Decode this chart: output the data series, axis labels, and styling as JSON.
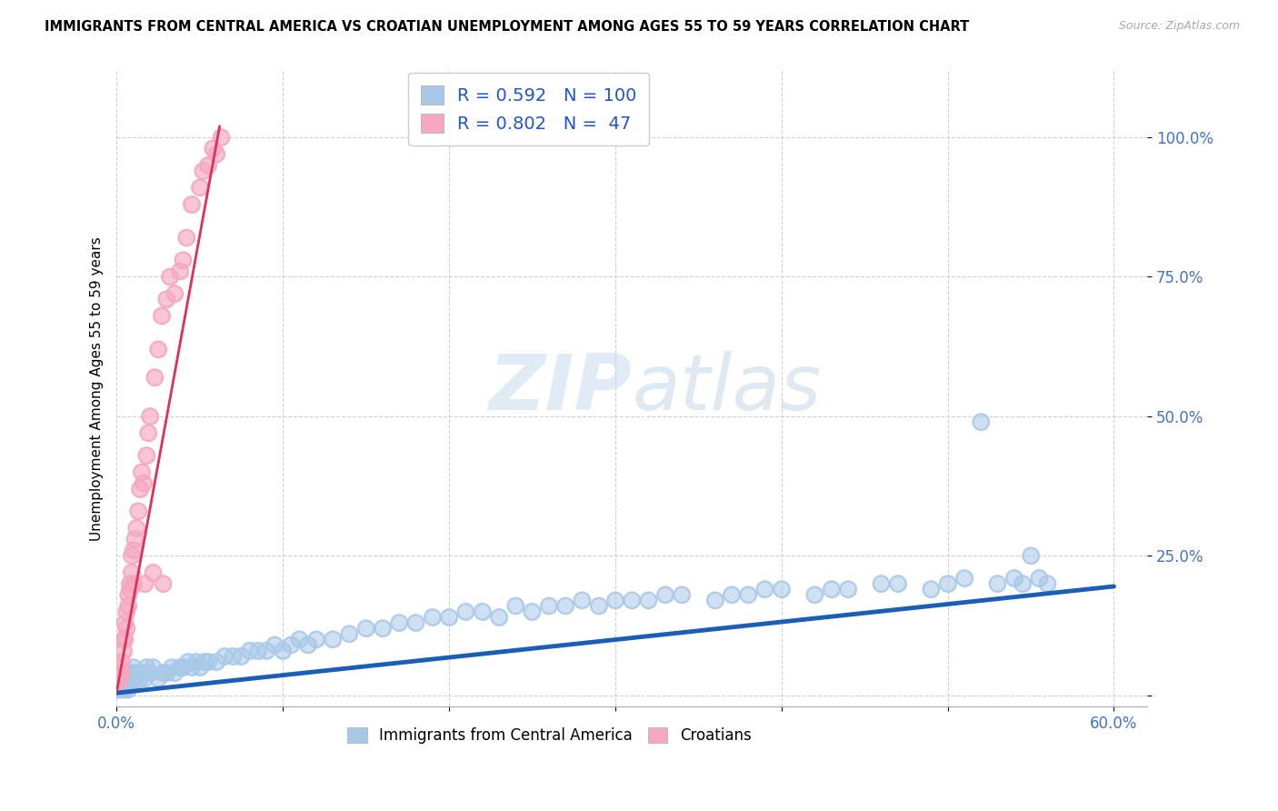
{
  "title": "IMMIGRANTS FROM CENTRAL AMERICA VS CROATIAN UNEMPLOYMENT AMONG AGES 55 TO 59 YEARS CORRELATION CHART",
  "source": "Source: ZipAtlas.com",
  "ylabel": "Unemployment Among Ages 55 to 59 years",
  "xlim": [
    0.0,
    0.62
  ],
  "ylim": [
    -0.02,
    1.12
  ],
  "xticks": [
    0.0,
    0.1,
    0.2,
    0.3,
    0.4,
    0.5,
    0.6
  ],
  "xticklabels": [
    "0.0%",
    "",
    "",
    "",
    "",
    "",
    "60.0%"
  ],
  "ytick_positions": [
    0.0,
    0.25,
    0.5,
    0.75,
    1.0
  ],
  "yticklabels": [
    "",
    "25.0%",
    "50.0%",
    "75.0%",
    "100.0%"
  ],
  "blue_color": "#a8c8e8",
  "pink_color": "#f5a8c0",
  "blue_line_color": "#1a5eb8",
  "pink_line_color": "#e0305a",
  "watermark_zip": "ZIP",
  "watermark_atlas": "atlas",
  "legend_r1": "0.592",
  "legend_n1": "100",
  "legend_r2": "0.802",
  "legend_n2": " 47",
  "blue_scatter_x": [
    0.001,
    0.001,
    0.002,
    0.002,
    0.003,
    0.003,
    0.003,
    0.004,
    0.004,
    0.005,
    0.005,
    0.005,
    0.006,
    0.006,
    0.007,
    0.007,
    0.008,
    0.008,
    0.009,
    0.009,
    0.01,
    0.01,
    0.011,
    0.012,
    0.013,
    0.014,
    0.015,
    0.016,
    0.017,
    0.018,
    0.02,
    0.022,
    0.025,
    0.028,
    0.03,
    0.033,
    0.035,
    0.038,
    0.04,
    0.043,
    0.045,
    0.048,
    0.05,
    0.053,
    0.055,
    0.06,
    0.065,
    0.07,
    0.075,
    0.08,
    0.085,
    0.09,
    0.095,
    0.1,
    0.105,
    0.11,
    0.115,
    0.12,
    0.13,
    0.14,
    0.15,
    0.16,
    0.17,
    0.18,
    0.19,
    0.2,
    0.21,
    0.22,
    0.23,
    0.24,
    0.25,
    0.26,
    0.27,
    0.28,
    0.29,
    0.3,
    0.31,
    0.32,
    0.33,
    0.34,
    0.36,
    0.37,
    0.38,
    0.39,
    0.4,
    0.42,
    0.43,
    0.44,
    0.46,
    0.47,
    0.49,
    0.5,
    0.51,
    0.52,
    0.53,
    0.54,
    0.545,
    0.55,
    0.555,
    0.56
  ],
  "blue_scatter_y": [
    0.01,
    0.02,
    0.01,
    0.03,
    0.01,
    0.02,
    0.04,
    0.02,
    0.03,
    0.01,
    0.02,
    0.04,
    0.02,
    0.03,
    0.01,
    0.04,
    0.02,
    0.03,
    0.02,
    0.04,
    0.02,
    0.05,
    0.03,
    0.03,
    0.04,
    0.03,
    0.04,
    0.04,
    0.03,
    0.05,
    0.04,
    0.05,
    0.03,
    0.04,
    0.04,
    0.05,
    0.04,
    0.05,
    0.05,
    0.06,
    0.05,
    0.06,
    0.05,
    0.06,
    0.06,
    0.06,
    0.07,
    0.07,
    0.07,
    0.08,
    0.08,
    0.08,
    0.09,
    0.08,
    0.09,
    0.1,
    0.09,
    0.1,
    0.1,
    0.11,
    0.12,
    0.12,
    0.13,
    0.13,
    0.14,
    0.14,
    0.15,
    0.15,
    0.14,
    0.16,
    0.15,
    0.16,
    0.16,
    0.17,
    0.16,
    0.17,
    0.17,
    0.17,
    0.18,
    0.18,
    0.17,
    0.18,
    0.18,
    0.19,
    0.19,
    0.18,
    0.19,
    0.19,
    0.2,
    0.2,
    0.19,
    0.2,
    0.21,
    0.49,
    0.2,
    0.21,
    0.2,
    0.25,
    0.21,
    0.2
  ],
  "pink_scatter_x": [
    0.001,
    0.002,
    0.002,
    0.003,
    0.003,
    0.004,
    0.004,
    0.005,
    0.005,
    0.006,
    0.006,
    0.007,
    0.007,
    0.008,
    0.008,
    0.009,
    0.009,
    0.01,
    0.01,
    0.011,
    0.012,
    0.013,
    0.014,
    0.015,
    0.016,
    0.017,
    0.018,
    0.019,
    0.02,
    0.022,
    0.023,
    0.025,
    0.027,
    0.028,
    0.03,
    0.032,
    0.035,
    0.038,
    0.04,
    0.042,
    0.045,
    0.05,
    0.052,
    0.055,
    0.058,
    0.06,
    0.063
  ],
  "pink_scatter_y": [
    0.02,
    0.03,
    0.05,
    0.04,
    0.06,
    0.08,
    0.1,
    0.1,
    0.13,
    0.12,
    0.15,
    0.16,
    0.18,
    0.19,
    0.2,
    0.22,
    0.25,
    0.2,
    0.26,
    0.28,
    0.3,
    0.33,
    0.37,
    0.4,
    0.38,
    0.2,
    0.43,
    0.47,
    0.5,
    0.22,
    0.57,
    0.62,
    0.68,
    0.2,
    0.71,
    0.75,
    0.72,
    0.76,
    0.78,
    0.82,
    0.88,
    0.91,
    0.94,
    0.95,
    0.98,
    0.97,
    1.0
  ],
  "blue_trend_x": [
    0.0,
    0.6
  ],
  "blue_trend_y": [
    0.004,
    0.195
  ],
  "pink_trend_x": [
    0.0,
    0.062
  ],
  "pink_trend_y": [
    0.005,
    1.02
  ]
}
